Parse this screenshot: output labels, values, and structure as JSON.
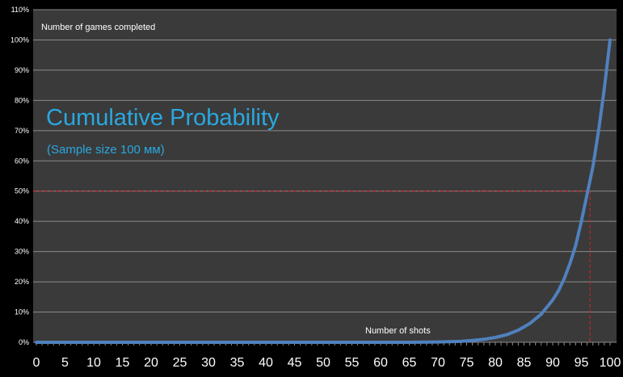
{
  "chart_data": {
    "type": "line",
    "title": "Cumulative Probability",
    "subtitle": "(Sample size 100 мм)",
    "xlabel": "Number of shots",
    "ylabel": "Number of games completed",
    "xlim": [
      0,
      100
    ],
    "ylim": [
      0,
      1.1
    ],
    "x_ticks": [
      "0",
      "5",
      "10",
      "15",
      "20",
      "25",
      "30",
      "35",
      "40",
      "45",
      "50",
      "55",
      "60",
      "65",
      "70",
      "75",
      "80",
      "85",
      "90",
      "95",
      "100"
    ],
    "y_ticks": [
      "0%",
      "10%",
      "20%",
      "30%",
      "40%",
      "50%",
      "60%",
      "70%",
      "80%",
      "90%",
      "100%",
      "110%"
    ],
    "grid": true,
    "colors": {
      "background": "#3a3a3a",
      "gridline": "#8a8a8a",
      "series": "#4f81bd",
      "title": "#29a8e0",
      "reference": "#e0202a",
      "tick_text": "#ffffff",
      "axis_labels": "#ffffff"
    },
    "series": [
      {
        "x": [
          0,
          5,
          10,
          15,
          20,
          25,
          30,
          35,
          40,
          45,
          50,
          55,
          60,
          65,
          70,
          72,
          74,
          76,
          78,
          80,
          82,
          84,
          86,
          88,
          90,
          91,
          92,
          93,
          94,
          95,
          96,
          97,
          98,
          99,
          100
        ],
        "y": [
          0,
          0,
          0,
          0,
          0,
          0,
          0,
          0,
          0,
          0,
          0,
          0,
          0,
          0,
          0.001,
          0.002,
          0.003,
          0.006,
          0.01,
          0.016,
          0.025,
          0.04,
          0.062,
          0.093,
          0.14,
          0.17,
          0.21,
          0.26,
          0.32,
          0.4,
          0.49,
          0.58,
          0.7,
          0.84,
          1.0
        ]
      }
    ],
    "reference_lines": {
      "y": 0.5,
      "x": 96.5
    }
  }
}
